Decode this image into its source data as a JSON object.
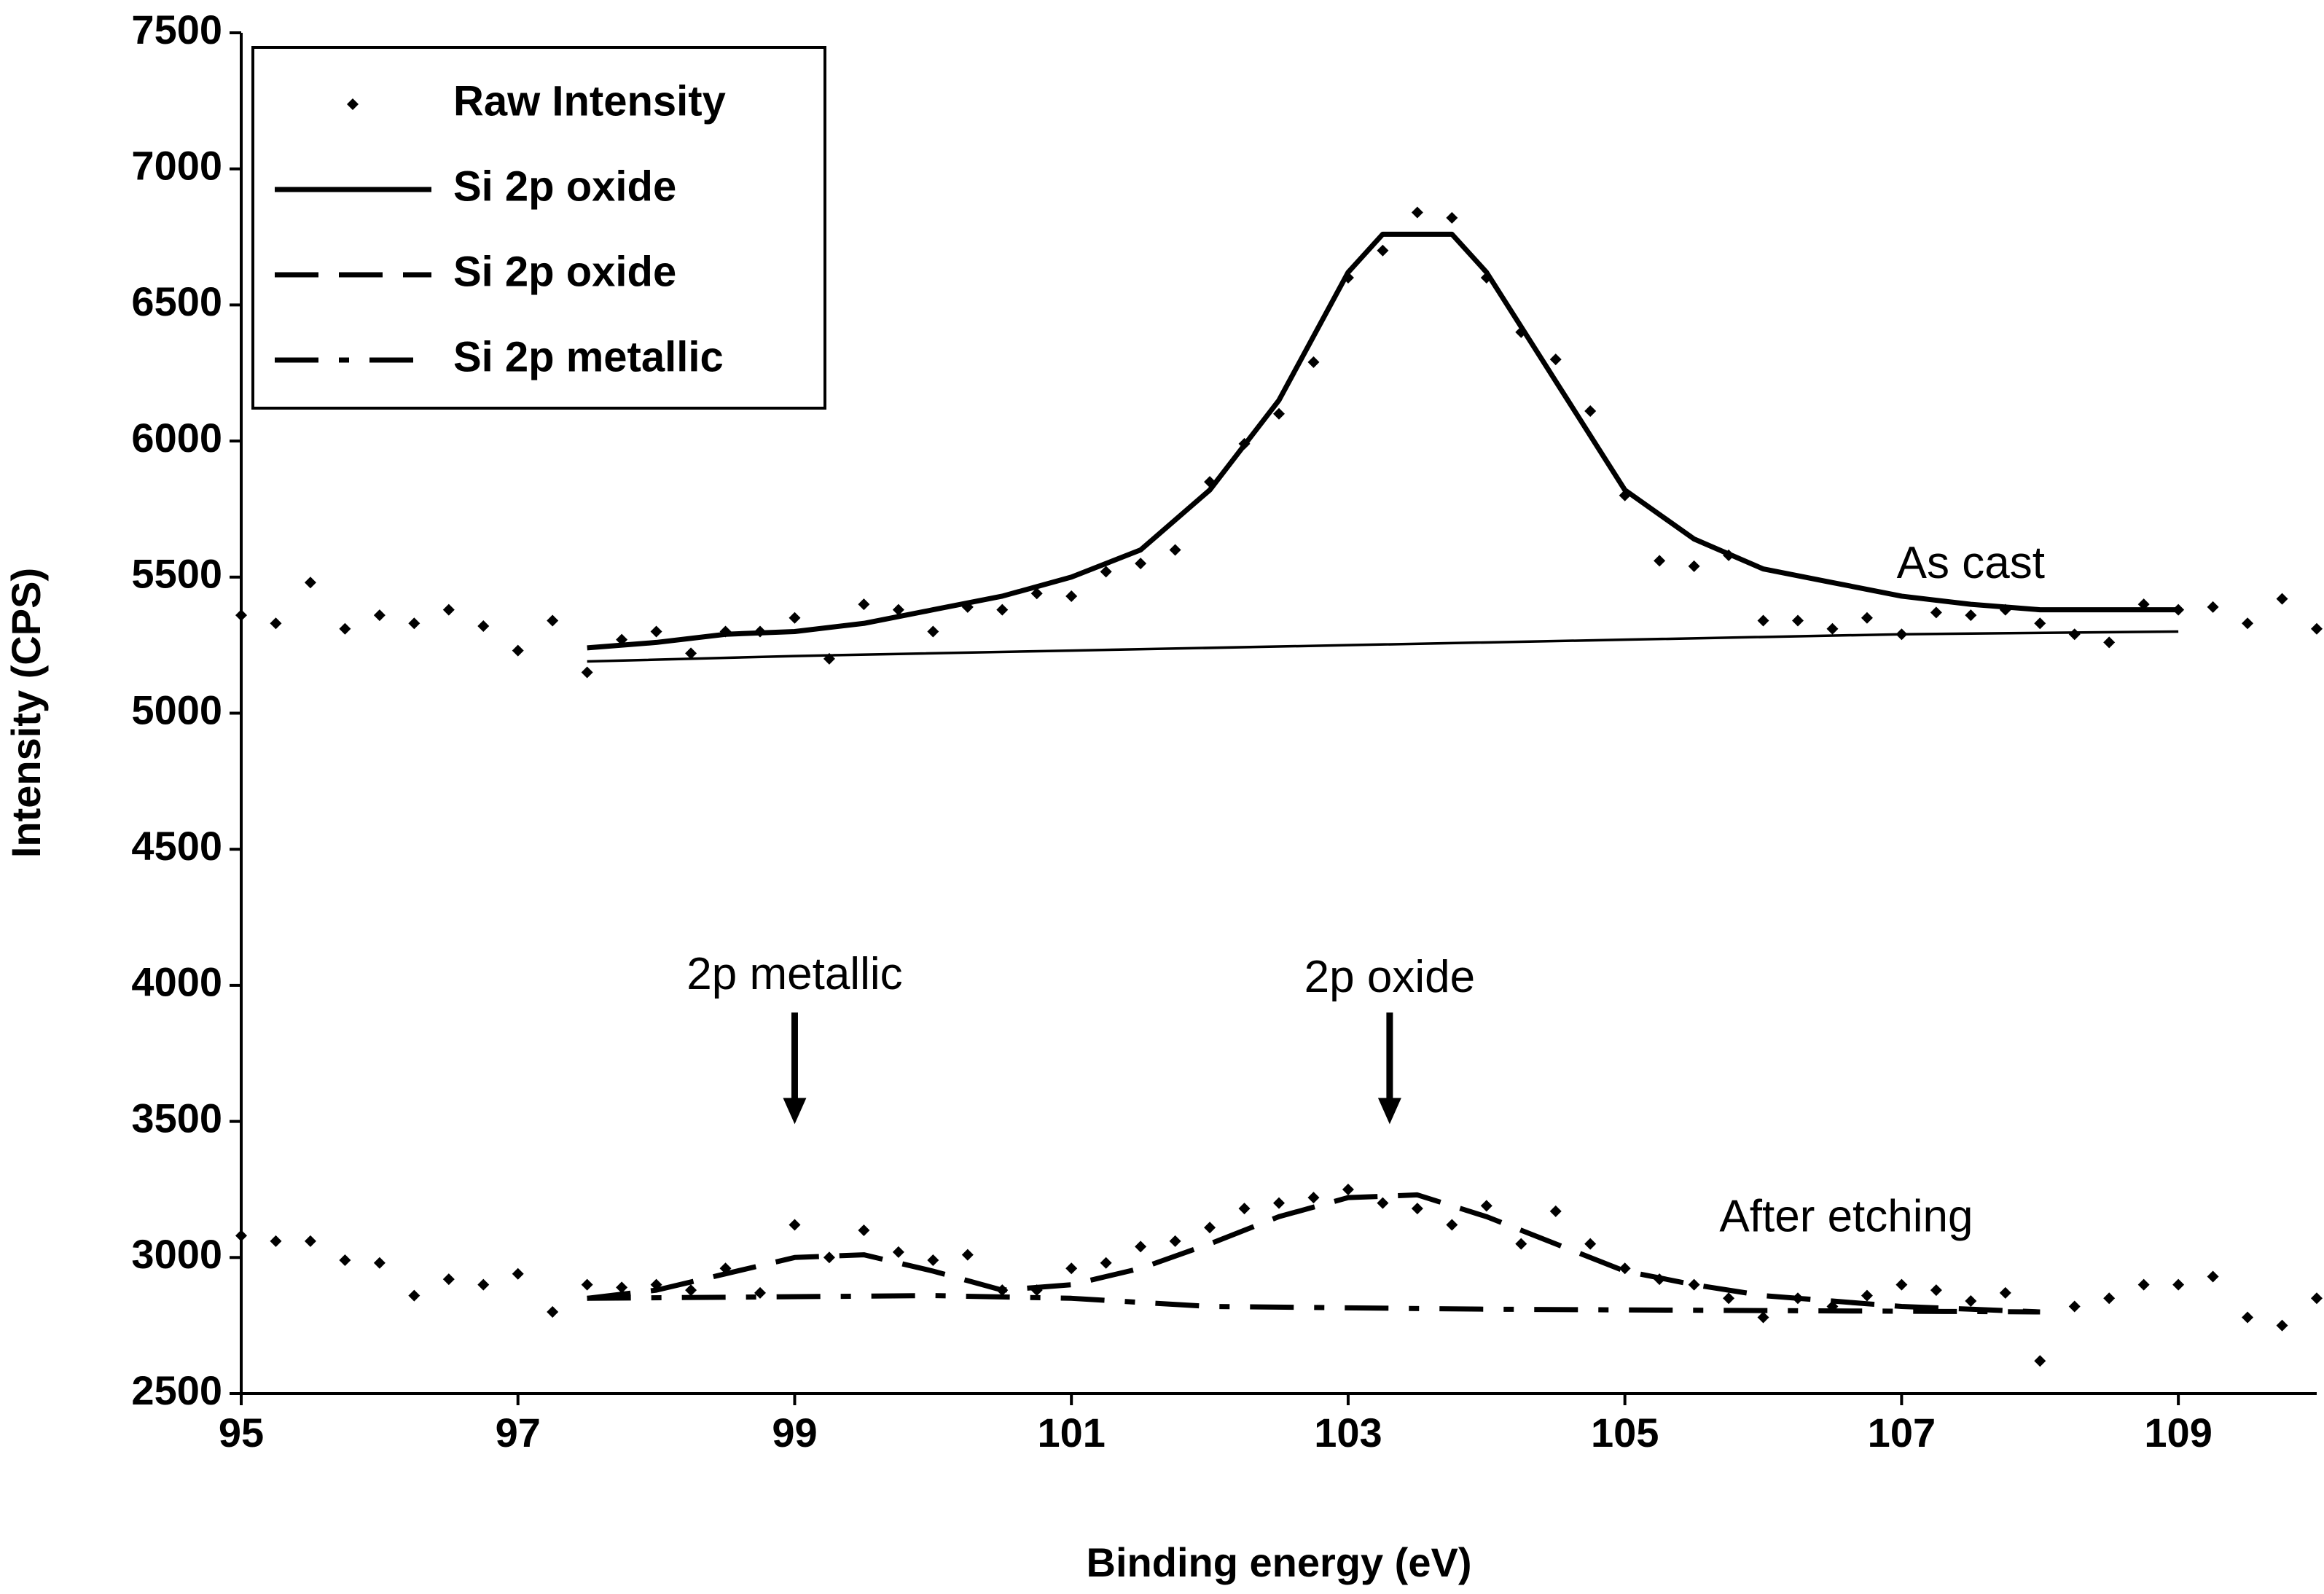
{
  "chart_data": {
    "type": "line",
    "xlabel": "Binding energy (eV)",
    "ylabel": "Intensity (CPS)",
    "xlim": [
      95,
      110
    ],
    "xticks": [
      95,
      97,
      99,
      101,
      103,
      105,
      107,
      109
    ],
    "ylim": [
      2500,
      7500
    ],
    "yticks": [
      2500,
      3000,
      3500,
      4000,
      4500,
      5000,
      5500,
      6000,
      6500,
      7000,
      7500
    ],
    "grid": false,
    "legend": "upper left",
    "annotations": [
      "As cast",
      "After etching",
      "2p metallic",
      "2p oxide"
    ],
    "series": [
      {
        "name": "Raw Intensity",
        "type": "scatter",
        "color": "#000000",
        "x": [
          95,
          95.25,
          95.5,
          95.75,
          96,
          96.25,
          96.5,
          96.75,
          97,
          97.25,
          97.5,
          97.75,
          98,
          98.25,
          98.5,
          98.75,
          99,
          99.25,
          99.5,
          99.75,
          100,
          100.25,
          100.5,
          100.75,
          101,
          101.25,
          101.5,
          101.75,
          102,
          102.25,
          102.5,
          102.75,
          103,
          103.25,
          103.5,
          103.75,
          104,
          104.25,
          104.5,
          104.75,
          105,
          105.25,
          105.5,
          105.75,
          106,
          106.25,
          106.5,
          106.75,
          107,
          107.25,
          107.5,
          107.75,
          108,
          108.25,
          108.5,
          108.75,
          109,
          109.25,
          109.5,
          109.75,
          110,
          95,
          95.25,
          95.5,
          95.75,
          96,
          96.25,
          96.5,
          96.75,
          97,
          97.25,
          97.5,
          97.75,
          98,
          98.25,
          98.5,
          98.75,
          99,
          99.25,
          99.5,
          99.75,
          100,
          100.25,
          100.5,
          100.75,
          101,
          101.25,
          101.5,
          101.75,
          102,
          102.25,
          102.5,
          102.75,
          103,
          103.25,
          103.5,
          103.75,
          104,
          104.25,
          104.5,
          104.75,
          105,
          105.25,
          105.5,
          105.75,
          106,
          106.25,
          106.5,
          106.75,
          107,
          107.25,
          107.5,
          107.75,
          108,
          108.25,
          108.5,
          108.75,
          109,
          109.25,
          109.5,
          109.75,
          110
        ],
        "values": [
          5360,
          5330,
          5480,
          5310,
          5360,
          5330,
          5380,
          5320,
          5230,
          5340,
          5150,
          5270,
          5300,
          5220,
          5300,
          5300,
          5350,
          5200,
          5400,
          5380,
          5300,
          5390,
          5380,
          5440,
          5430,
          5520,
          5550,
          5600,
          5850,
          5990,
          6100,
          6290,
          6600,
          6700,
          6840,
          6820,
          6600,
          6400,
          6300,
          6110,
          5800,
          5560,
          5540,
          5580,
          5340,
          5340,
          5310,
          5350,
          5290,
          5370,
          5360,
          5380,
          5330,
          5290,
          5260,
          5400,
          5380,
          5390,
          5330,
          5420,
          5310,
          3080,
          3060,
          3060,
          2990,
          2980,
          2860,
          2920,
          2900,
          2940,
          2800,
          2900,
          2890,
          2900,
          2880,
          2960,
          2870,
          3120,
          3000,
          3100,
          3020,
          2990,
          3010,
          2880,
          2880,
          2960,
          2980,
          3040,
          3060,
          3110,
          3180,
          3200,
          3220,
          3250,
          3200,
          3180,
          3120,
          3190,
          3050,
          3170,
          3050,
          2960,
          2920,
          2900,
          2850,
          2780,
          2850,
          2820,
          2860,
          2900,
          2880,
          2840,
          2870,
          2620,
          2820,
          2850,
          2900,
          2900,
          2930,
          2780,
          2750,
          2850
        ]
      },
      {
        "name": "Si 2p oxide",
        "type": "line",
        "line_style": "solid",
        "color": "#000000",
        "x": [
          97.5,
          98,
          98.5,
          99,
          99.5,
          100,
          100.5,
          101,
          101.5,
          102,
          102.5,
          103,
          103.25,
          103.75,
          104,
          104.5,
          105,
          105.5,
          106,
          106.5,
          107,
          107.5,
          108,
          108.5,
          109
        ],
        "values": [
          5240,
          5260,
          5290,
          5300,
          5330,
          5380,
          5430,
          5500,
          5600,
          5820,
          6150,
          6620,
          6760,
          6760,
          6620,
          6220,
          5820,
          5640,
          5530,
          5480,
          5430,
          5400,
          5380,
          5380,
          5380
        ]
      },
      {
        "name": "Si 2p oxide",
        "type": "line",
        "line_style": "dashed",
        "color": "#000000",
        "x": [
          97.5,
          98,
          98.5,
          99,
          99.5,
          100,
          100.5,
          101,
          101.5,
          102,
          102.5,
          103,
          103.5,
          104,
          104.5,
          105,
          105.5,
          106,
          106.5,
          107,
          107.5,
          108
        ],
        "values": [
          2850,
          2880,
          2940,
          3000,
          3010,
          2950,
          2880,
          2900,
          2960,
          3050,
          3150,
          3220,
          3230,
          3150,
          3050,
          2950,
          2900,
          2860,
          2840,
          2820,
          2810,
          2800
        ]
      },
      {
        "name": "Si 2p metallic",
        "type": "line",
        "line_style": "dashdot",
        "color": "#000000",
        "x": [
          97.5,
          100,
          101,
          102,
          104,
          108
        ],
        "values": [
          2850,
          2860,
          2850,
          2820,
          2810,
          2800
        ]
      },
      {
        "type": "line",
        "line_style": "thin",
        "color": "#000000",
        "x": [
          97.5,
          99,
          101,
          103,
          105,
          107,
          109
        ],
        "values": [
          5190,
          5210,
          5230,
          5250,
          5270,
          5290,
          5300
        ]
      }
    ]
  }
}
